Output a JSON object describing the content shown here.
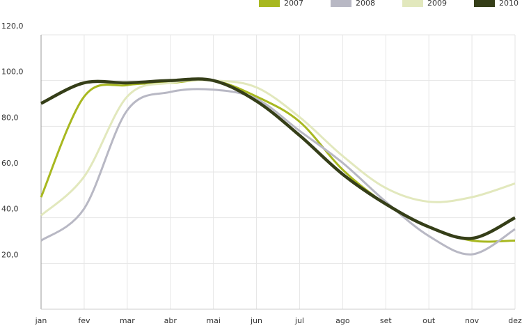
{
  "chart_data": {
    "type": "line",
    "categories": [
      "jan",
      "fev",
      "mar",
      "abr",
      "mai",
      "jun",
      "jul",
      "ago",
      "set",
      "out",
      "nov",
      "dez"
    ],
    "series": [
      {
        "name": "2007",
        "color": "#a8b820",
        "values": [
          49,
          93,
          98,
          99,
          100,
          93,
          82,
          61,
          46,
          36,
          30,
          30
        ]
      },
      {
        "name": "2008",
        "color": "#b8b8c4",
        "values": [
          30,
          44,
          87,
          95,
          96,
          92,
          78,
          64,
          47,
          32,
          24,
          35
        ]
      },
      {
        "name": "2009",
        "color": "#e2e8bd",
        "values": [
          41,
          58,
          93,
          99,
          100,
          97,
          84,
          67,
          53,
          47,
          49,
          55
        ]
      },
      {
        "name": "2010",
        "color": "#353e18",
        "values": [
          90,
          99,
          99,
          100,
          100,
          91,
          76,
          59,
          46,
          36,
          31,
          40
        ]
      }
    ],
    "ylim": [
      0,
      120
    ],
    "yticks": [
      {
        "value": 20,
        "label": "20,0"
      },
      {
        "value": 40,
        "label": "40,0"
      },
      {
        "value": 60,
        "label": "60,0"
      },
      {
        "value": 80,
        "label": "80,0"
      },
      {
        "value": 100,
        "label": "100,0"
      },
      {
        "value": 120,
        "label": "120,0"
      }
    ],
    "grid": true,
    "legend": "top-right"
  }
}
